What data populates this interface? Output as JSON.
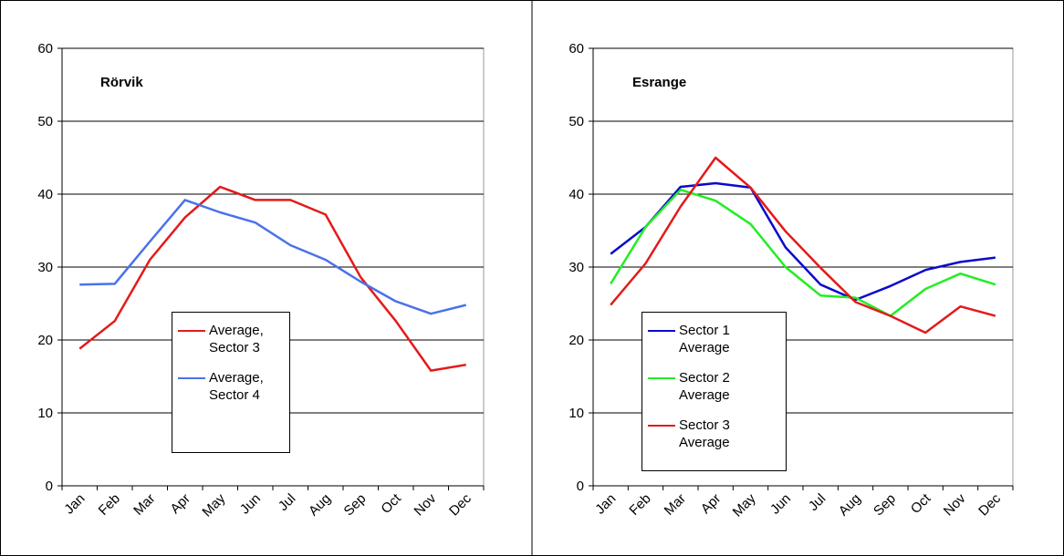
{
  "chart_data": [
    {
      "type": "line",
      "title": "Rörvik",
      "categories": [
        "Jan",
        "Feb",
        "Mar",
        "Apr",
        "May",
        "Jun",
        "Jul",
        "Aug",
        "Sep",
        "Oct",
        "Nov",
        "Dec"
      ],
      "series": [
        {
          "name": "Average, Sector 3",
          "color": "#e31a1a",
          "values": [
            18.8,
            22.6,
            31,
            36.8,
            41,
            39.2,
            39.2,
            37.2,
            28.6,
            22.6,
            15.8,
            16.6
          ]
        },
        {
          "name": "Average, Sector 4",
          "color": "#4a72e8",
          "values": [
            27.6,
            27.7,
            33.5,
            39.2,
            37.5,
            36.1,
            33,
            31,
            28,
            25.3,
            23.6,
            24.8
          ]
        }
      ],
      "ylim": [
        0,
        60
      ],
      "yticks": [
        0,
        10,
        20,
        30,
        40,
        50,
        60
      ],
      "grid": true
    },
    {
      "type": "line",
      "title": "Esrange",
      "categories": [
        "Jan",
        "Feb",
        "Mar",
        "Apr",
        "May",
        "Jun",
        "Jul",
        "Aug",
        "Sep",
        "Oct",
        "Nov",
        "Dec"
      ],
      "series": [
        {
          "name": "Sector 1 Average",
          "color": "#0a0acc",
          "values": [
            31.8,
            35.5,
            41,
            41.5,
            40.9,
            32.7,
            27.6,
            25.5,
            27.4,
            29.6,
            30.7,
            31.3
          ]
        },
        {
          "name": "Sector 2 Average",
          "color": "#22ee22",
          "values": [
            27.7,
            35.5,
            40.6,
            39.1,
            35.9,
            30,
            26.1,
            25.8,
            23.3,
            27,
            29.1,
            27.6
          ]
        },
        {
          "name": "Sector 3 Average",
          "color": "#e31a1a",
          "values": [
            24.8,
            30.5,
            38.3,
            45,
            40.9,
            34.9,
            29.9,
            25.2,
            23.3,
            21,
            24.6,
            23.3
          ]
        }
      ],
      "ylim": [
        0,
        60
      ],
      "yticks": [
        0,
        10,
        20,
        30,
        40,
        50,
        60
      ],
      "grid": true
    }
  ]
}
